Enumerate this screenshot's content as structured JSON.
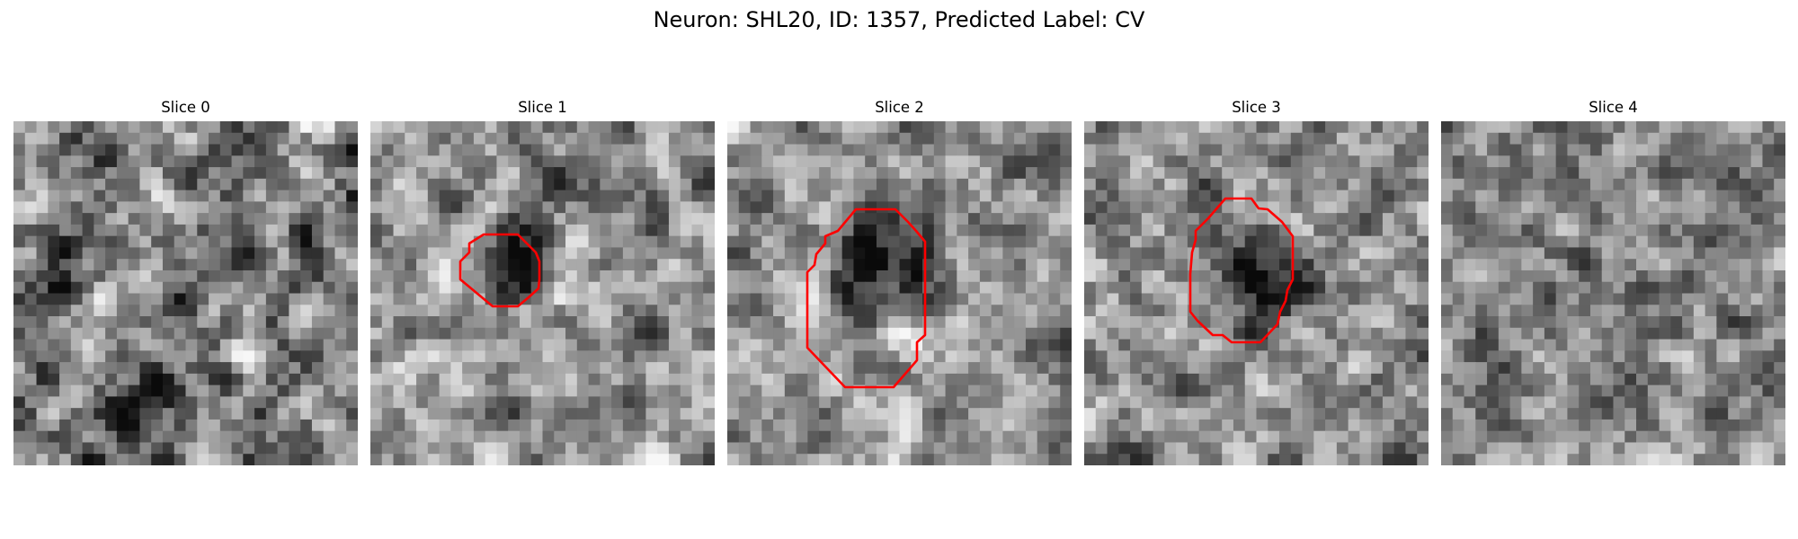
{
  "figure": {
    "title": "Neuron: SHL20, ID: 1357, Predicted Label: CV"
  },
  "slices": [
    {
      "label": "Slice 0",
      "has_contour": false
    },
    {
      "label": "Slice 1",
      "has_contour": true
    },
    {
      "label": "Slice 2",
      "has_contour": true
    },
    {
      "label": "Slice 3",
      "has_contour": true
    },
    {
      "label": "Slice 4",
      "has_contour": false
    }
  ],
  "colors": {
    "contour": "#ff0000",
    "colormap": "grayscale"
  }
}
